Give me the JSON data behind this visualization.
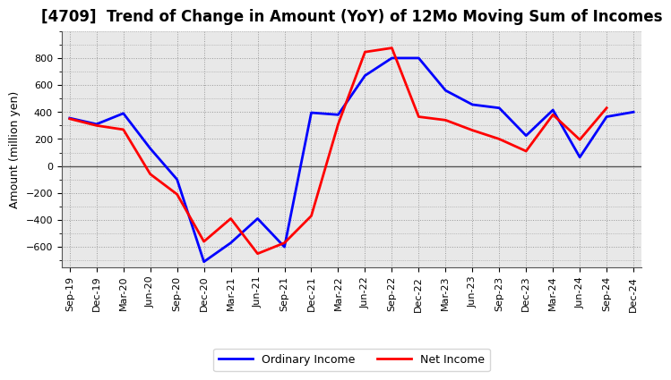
{
  "title": "[4709]  Trend of Change in Amount (YoY) of 12Mo Moving Sum of Incomes",
  "ylabel": "Amount (million yen)",
  "x_labels": [
    "Sep-19",
    "Dec-19",
    "Mar-20",
    "Jun-20",
    "Sep-20",
    "Dec-20",
    "Mar-21",
    "Jun-21",
    "Sep-21",
    "Dec-21",
    "Mar-22",
    "Jun-22",
    "Sep-22",
    "Dec-22",
    "Mar-23",
    "Jun-23",
    "Sep-23",
    "Dec-23",
    "Mar-24",
    "Jun-24",
    "Sep-24",
    "Dec-24"
  ],
  "ordinary_income": [
    355,
    310,
    390,
    130,
    -100,
    -710,
    -570,
    -390,
    -600,
    395,
    380,
    670,
    800,
    800,
    560,
    455,
    430,
    225,
    415,
    65,
    365,
    400
  ],
  "net_income": [
    350,
    300,
    270,
    -60,
    -210,
    -560,
    -390,
    -650,
    -570,
    -370,
    310,
    845,
    875,
    365,
    340,
    265,
    200,
    110,
    380,
    195,
    430,
    null
  ],
  "ordinary_color": "#0000FF",
  "net_color": "#FF0000",
  "ylim": [
    -750,
    1000
  ],
  "yticks": [
    -600,
    -400,
    -200,
    0,
    200,
    400,
    600,
    800
  ],
  "bg_color": "#E8E8E8",
  "grid_color": "#999999",
  "legend_ordinary": "Ordinary Income",
  "legend_net": "Net Income",
  "title_fontsize": 12,
  "axis_label_fontsize": 9,
  "tick_fontsize": 8,
  "legend_fontsize": 9,
  "line_width": 2.0
}
